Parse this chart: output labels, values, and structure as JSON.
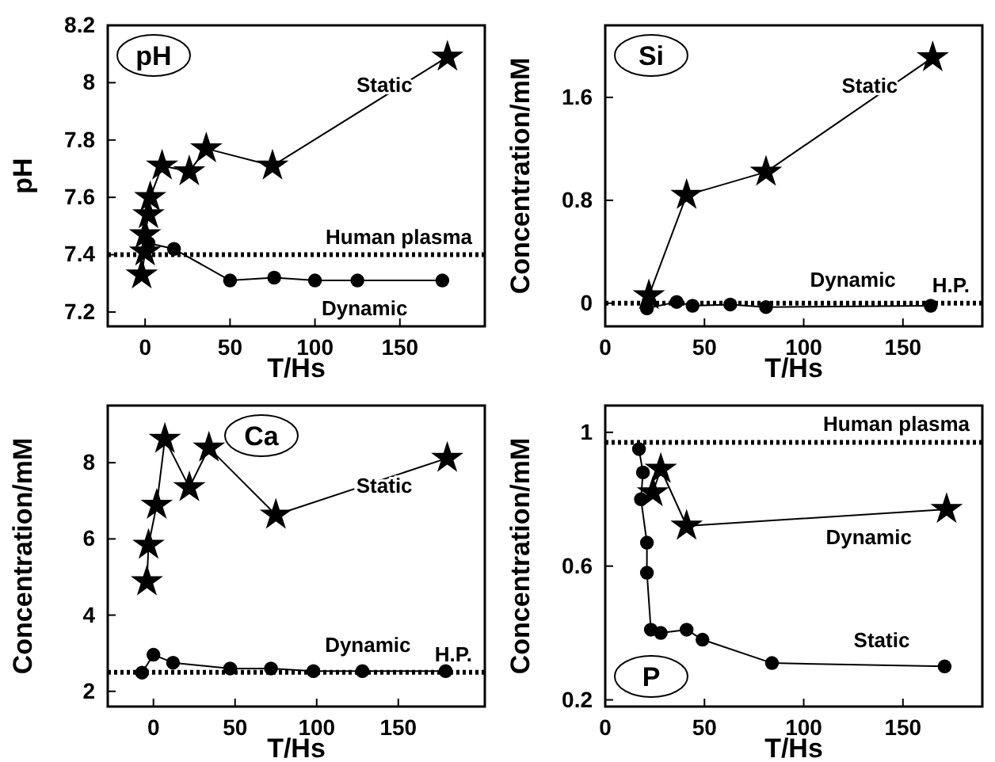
{
  "chart_data": [
    {
      "type": "line",
      "xlabel": "T/Hs",
      "ylabel": "pH",
      "annotations": [
        "pH"
      ],
      "xlim": [
        -22,
        200
      ],
      "ylim": [
        7.15,
        8.2
      ],
      "xticks": [
        0,
        50,
        100,
        150
      ],
      "yticks": [
        7.2,
        7.4,
        7.6,
        7.8,
        8.0,
        8.2
      ],
      "ref_lines": [
        {
          "axis": "y",
          "value": 7.4,
          "label": "Human plasma",
          "line_style": "dotted"
        }
      ],
      "series": [
        {
          "name": "Static",
          "color": "#000000",
          "marker": "star",
          "x": [
            -2,
            0,
            0,
            2,
            3,
            10,
            26,
            36,
            75,
            178
          ],
          "values": [
            7.33,
            7.41,
            7.47,
            7.54,
            7.6,
            7.71,
            7.69,
            7.77,
            7.71,
            8.09
          ]
        },
        {
          "name": "Dynamic",
          "color": "#000000",
          "marker": "circle",
          "x": [
            2,
            17,
            50,
            76,
            100,
            125,
            175
          ],
          "values": [
            7.44,
            7.42,
            7.31,
            7.32,
            7.31,
            7.31,
            7.31
          ]
        }
      ]
    },
    {
      "type": "line",
      "xlabel": "T/Hs",
      "ylabel": "Concentration/mM",
      "annotations": [
        "Si"
      ],
      "xlim": [
        0,
        190
      ],
      "ylim": [
        -0.18,
        2.16
      ],
      "xticks": [
        0,
        50,
        100,
        150
      ],
      "yticks": [
        0,
        0.8,
        1.6
      ],
      "ref_lines": [
        {
          "axis": "y",
          "value": 0,
          "label": "H.P.",
          "line_style": "dotted"
        }
      ],
      "series": [
        {
          "name": "Static",
          "color": "#000000",
          "marker": "star",
          "x": [
            22,
            41,
            81,
            165
          ],
          "values": [
            0.06,
            0.84,
            1.02,
            1.91
          ]
        },
        {
          "name": "Dynamic",
          "color": "#000000",
          "marker": "circle",
          "x": [
            21,
            36,
            44,
            63,
            81,
            164
          ],
          "values": [
            -0.04,
            0.01,
            -0.02,
            -0.01,
            -0.03,
            -0.02
          ]
        }
      ]
    },
    {
      "type": "line",
      "xlabel": "T/Hs",
      "ylabel": "Concentration/mM",
      "annotations": [
        "Ca"
      ],
      "xlim": [
        -28,
        203
      ],
      "ylim": [
        1.6,
        9.5
      ],
      "xticks": [
        0,
        50,
        100,
        150
      ],
      "yticks": [
        2,
        4,
        6,
        8
      ],
      "ref_lines": [
        {
          "axis": "y",
          "value": 2.5,
          "label": "H.P.",
          "line_style": "dotted"
        }
      ],
      "series": [
        {
          "name": "Static",
          "color": "#000000",
          "marker": "star",
          "x": [
            -4,
            -3,
            2,
            7,
            22,
            34,
            75,
            180
          ],
          "values": [
            4.88,
            5.84,
            6.89,
            8.62,
            7.35,
            8.39,
            6.63,
            8.12
          ]
        },
        {
          "name": "Dynamic",
          "color": "#000000",
          "marker": "circle",
          "x": [
            -7,
            0,
            12,
            47,
            72,
            98,
            128,
            179
          ],
          "values": [
            2.49,
            2.96,
            2.75,
            2.6,
            2.6,
            2.53,
            2.53,
            2.53
          ]
        }
      ]
    },
    {
      "type": "line",
      "xlabel": "T/Hs",
      "ylabel": "Concentration/mM",
      "annotations": [
        "P"
      ],
      "xlim": [
        0,
        190
      ],
      "ylim": [
        0.18,
        1.08
      ],
      "xticks": [
        0,
        50,
        100,
        150
      ],
      "yticks": [
        0.2,
        0.6,
        1.0
      ],
      "ref_lines": [
        {
          "axis": "y",
          "value": 0.97,
          "label": "Human plasma",
          "line_style": "dotted"
        }
      ],
      "series": [
        {
          "name": "Static",
          "color": "#000000",
          "marker": "circle",
          "x": [
            17,
            19,
            18,
            21,
            21,
            23,
            28,
            41,
            49,
            84,
            171
          ],
          "values": [
            0.95,
            0.88,
            0.8,
            0.67,
            0.58,
            0.41,
            0.4,
            0.41,
            0.38,
            0.31,
            0.3
          ]
        },
        {
          "name": "Dynamic",
          "color": "#000000",
          "marker": "star",
          "x": [
            24,
            28,
            41,
            172
          ],
          "values": [
            0.82,
            0.89,
            0.72,
            0.77
          ]
        }
      ]
    }
  ]
}
